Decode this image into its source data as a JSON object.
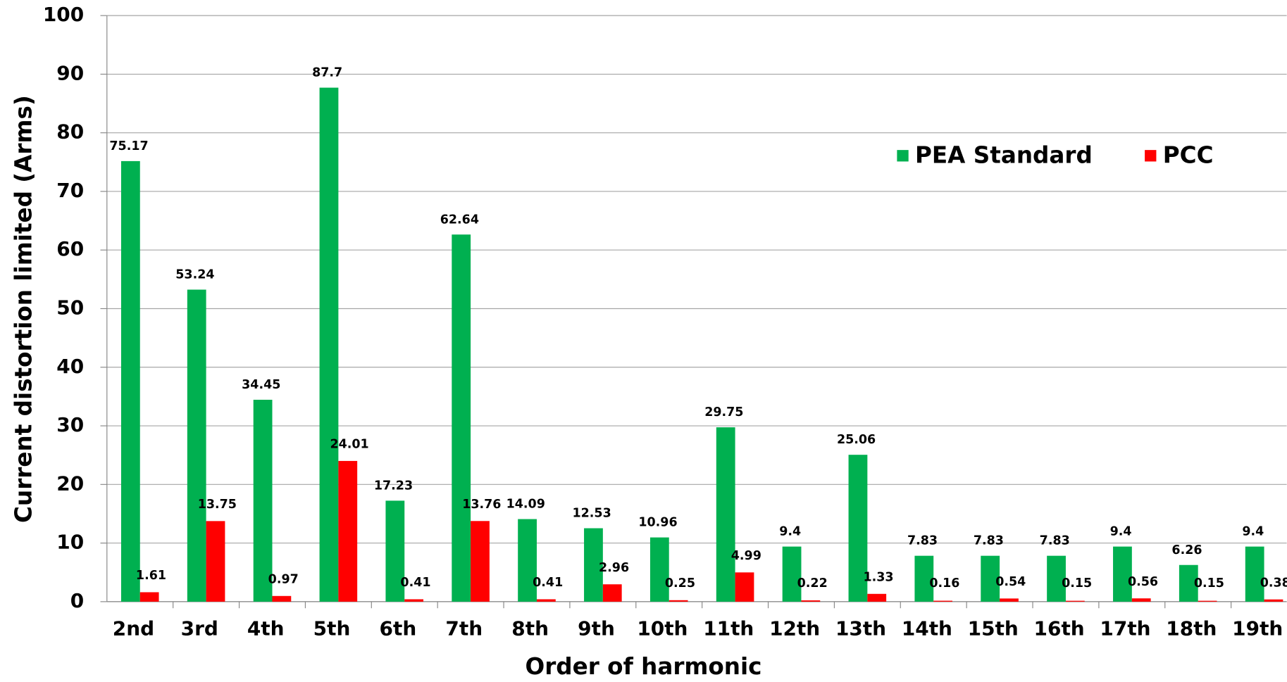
{
  "chart_data": {
    "type": "bar",
    "xlabel": "Order of harmonic",
    "ylabel": "Current distortion limited (Arms)",
    "categories": [
      "2nd",
      "3rd",
      "4th",
      "5th",
      "6th",
      "7th",
      "8th",
      "9th",
      "10th",
      "11th",
      "12th",
      "13th",
      "14th",
      "15th",
      "16th",
      "17th",
      "18th",
      "19th"
    ],
    "series": [
      {
        "name": "PEA Standard",
        "color": "#00b050",
        "values": [
          75.17,
          53.24,
          34.45,
          87.7,
          17.23,
          62.64,
          14.09,
          12.53,
          10.96,
          29.75,
          9.4,
          25.06,
          7.83,
          7.83,
          7.83,
          9.4,
          6.26,
          9.4
        ]
      },
      {
        "name": "PCC",
        "color": "#ff0000",
        "values": [
          1.61,
          13.75,
          0.97,
          24.01,
          0.41,
          13.76,
          0.41,
          2.96,
          0.25,
          4.99,
          0.22,
          1.33,
          0.16,
          0.54,
          0.15,
          0.56,
          0.15,
          0.38
        ]
      }
    ],
    "ylim": [
      0,
      100
    ],
    "yticks": [
      0,
      10,
      20,
      30,
      40,
      50,
      60,
      70,
      80,
      90,
      100
    ],
    "grid": true
  }
}
